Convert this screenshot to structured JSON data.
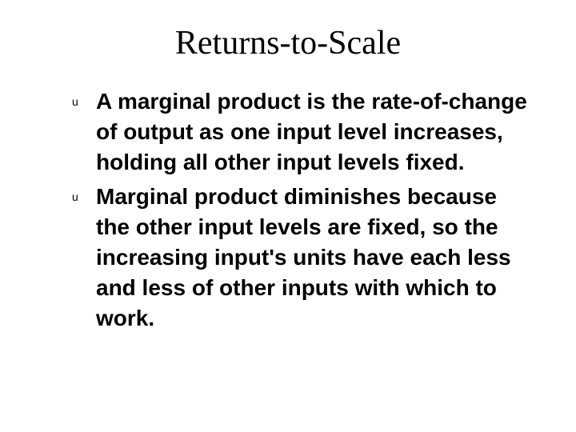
{
  "slide": {
    "title": "Returns-to-Scale",
    "bullets": [
      {
        "marker": "u",
        "text": "A marginal product is the rate-of-change of output as one input level increases, holding all other input levels fixed."
      },
      {
        "marker": "u",
        "text": "Marginal product diminishes because the other input levels are fixed, so the increasing input's units have each less and less of other inputs with which to work."
      }
    ]
  },
  "styles": {
    "background_color": "#ffffff",
    "text_color": "#000000",
    "title_fontsize": 42,
    "title_font": "Times New Roman",
    "title_weight": "normal",
    "body_fontsize": 28,
    "body_font": "Arial",
    "body_weight": "bold",
    "bullet_marker_fontsize": 14,
    "line_height": 1.35
  }
}
